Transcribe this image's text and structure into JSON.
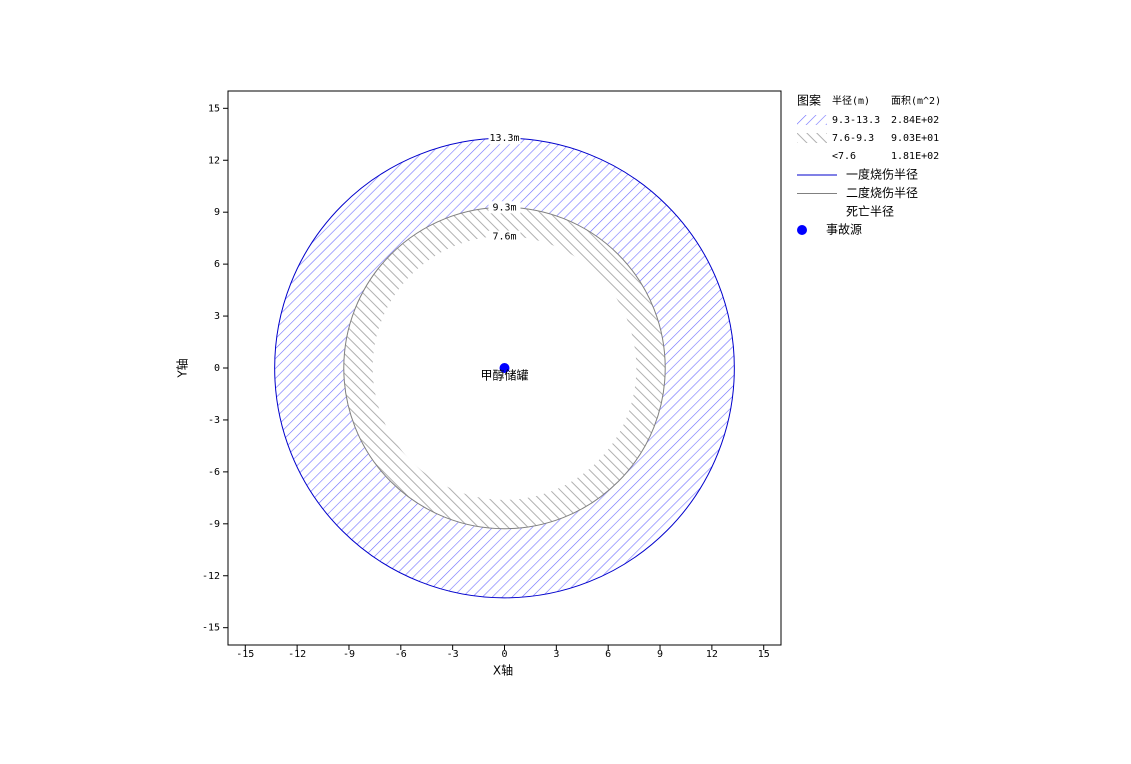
{
  "chart_data": {
    "type": "zones",
    "xlabel": "X轴",
    "ylabel": "Y轴",
    "xlim": [
      -16,
      16
    ],
    "ylim": [
      -16,
      16
    ],
    "xticks": [
      -15,
      -12,
      -9,
      -6,
      -3,
      0,
      3,
      6,
      9,
      12,
      15
    ],
    "yticks": [
      -15,
      -12,
      -9,
      -6,
      -3,
      0,
      3,
      6,
      9,
      12,
      15
    ],
    "circles": [
      {
        "name": "一度烧伤半径",
        "radius": 13.3,
        "label": "13.3m",
        "color": "#0000cc"
      },
      {
        "name": "二度烧伤半径",
        "radius": 9.3,
        "label": "9.3m",
        "color": "#808080"
      },
      {
        "name": "死亡半径",
        "radius": 7.6,
        "label": "7.6m",
        "color": "#ffffff"
      }
    ],
    "legend_header": [
      "图案",
      "半径(m)",
      "面积(m^2)"
    ],
    "zones": [
      {
        "range": "9.3-13.3",
        "area": "2.84E+02",
        "color": "#7070ff"
      },
      {
        "range": "7.6-9.3",
        "area": "9.03E+01",
        "color": "#b0b0b0"
      },
      {
        "range": "<7.6",
        "area": "1.81E+02",
        "color": "#ffffff"
      }
    ],
    "source": {
      "name": "事故源",
      "label": "甲醇储罐",
      "x": 0,
      "y": 0,
      "color": "#0000ff"
    }
  }
}
